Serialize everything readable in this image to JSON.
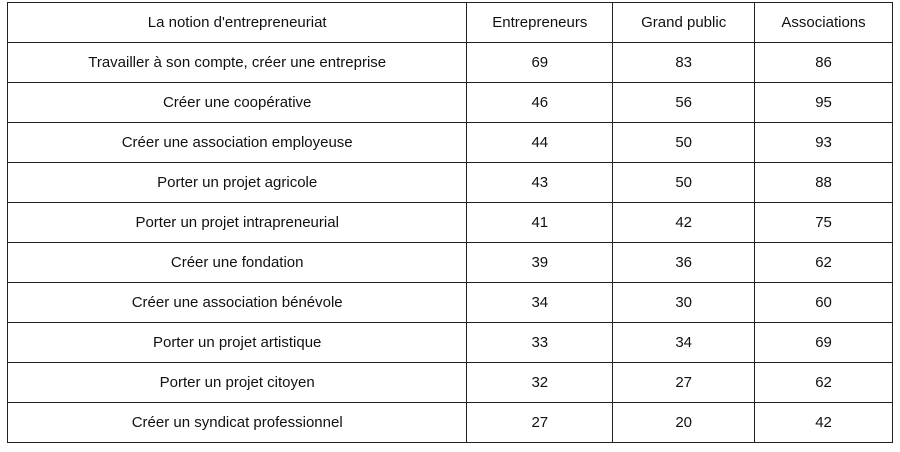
{
  "table": {
    "header": [
      "La notion d'entrepreneuriat",
      "Entrepreneurs",
      "Grand public",
      "Associations"
    ],
    "rows": [
      [
        "Travailler à son compte, créer une entreprise",
        69,
        83,
        86
      ],
      [
        "Créer une coopérative",
        46,
        56,
        95
      ],
      [
        "Créer une association employeuse",
        44,
        50,
        93
      ],
      [
        "Porter un projet agricole",
        43,
        50,
        88
      ],
      [
        "Porter un projet intrapreneurial",
        41,
        42,
        75
      ],
      [
        "Créer une fondation",
        39,
        36,
        62
      ],
      [
        "Créer une association bénévole",
        34,
        30,
        60
      ],
      [
        "Porter un projet artistique",
        33,
        34,
        69
      ],
      [
        "Porter un projet citoyen",
        32,
        27,
        62
      ],
      [
        "Créer un syndicat professionnel",
        27,
        20,
        42
      ]
    ]
  }
}
